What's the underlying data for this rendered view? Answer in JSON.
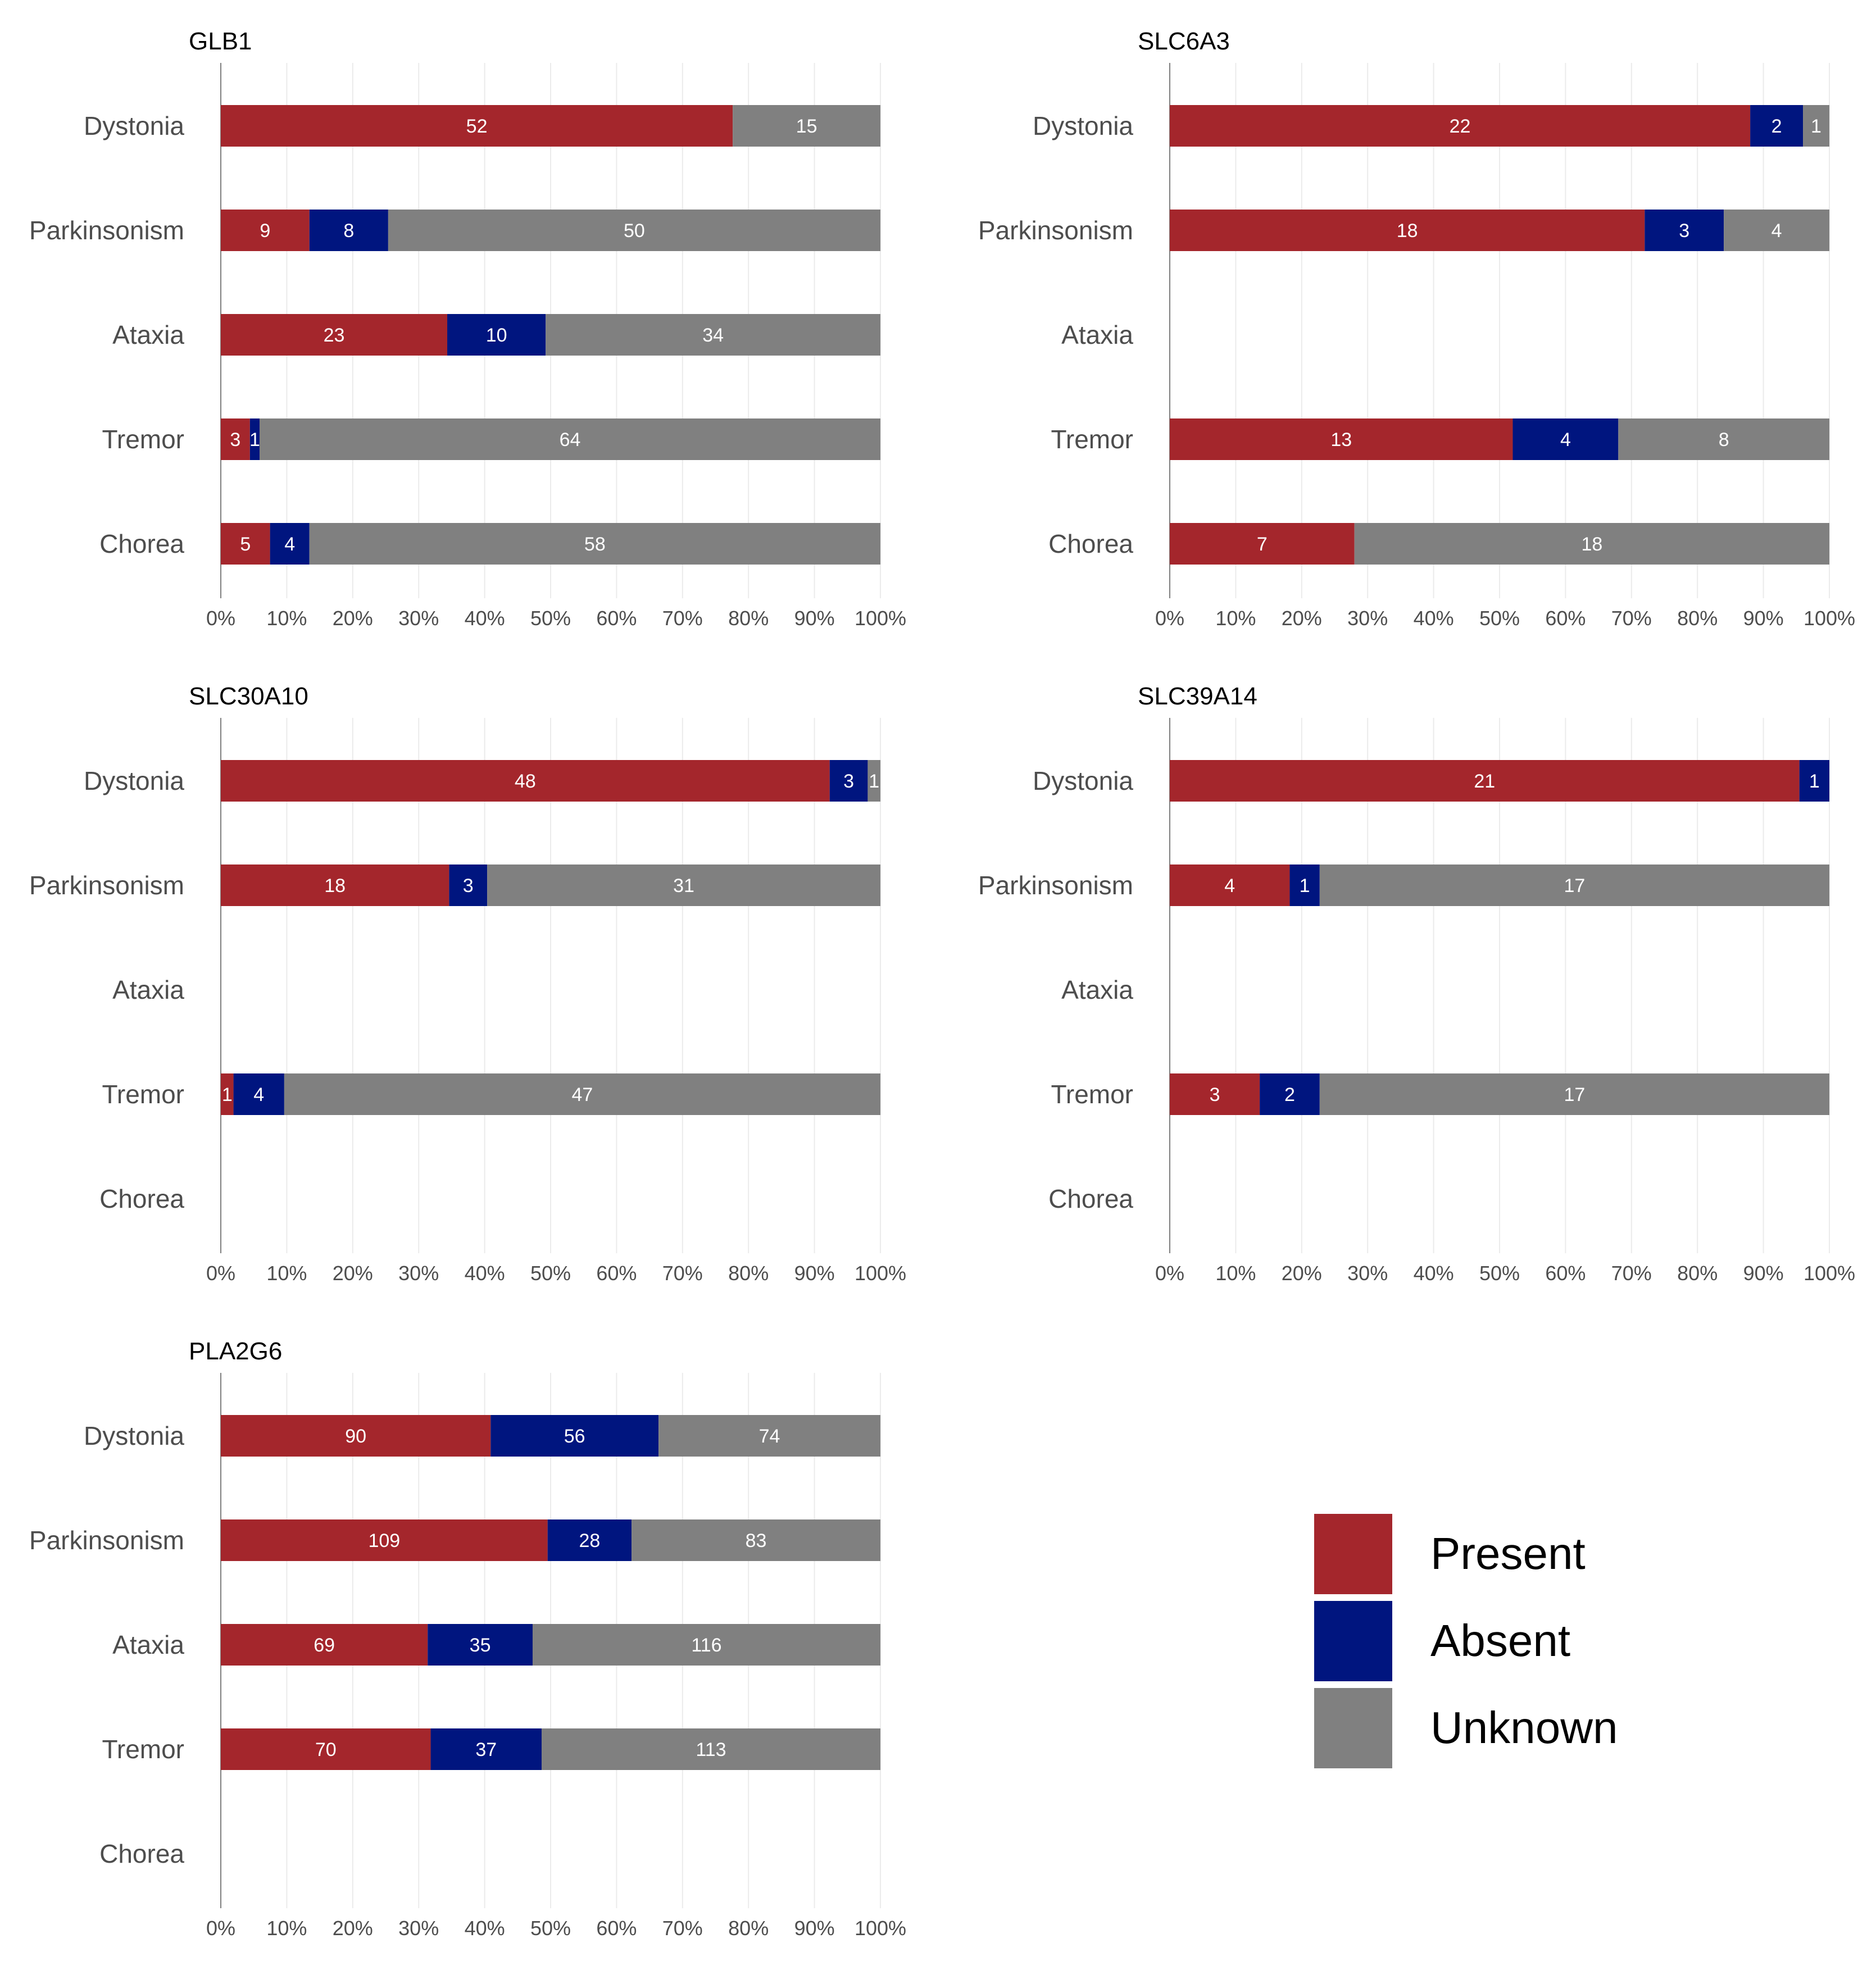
{
  "figure": {
    "legend_title": "",
    "legend": [
      {
        "key": "present",
        "label": "Present",
        "color": "#A4262C"
      },
      {
        "key": "absent",
        "label": "Absent",
        "color": "#00157F"
      },
      {
        "key": "unknown",
        "label": "Unknown",
        "color": "#808080"
      }
    ]
  },
  "chart_data": [
    {
      "type": "bar",
      "orientation": "horizontal",
      "stacking": "percent",
      "title": "GLB1",
      "categories": [
        "Dystonia",
        "Parkinsonism",
        "Ataxia",
        "Tremor",
        "Chorea"
      ],
      "series": [
        {
          "name": "Present",
          "values": [
            52,
            9,
            23,
            3,
            5
          ]
        },
        {
          "name": "Absent",
          "values": [
            0,
            8,
            10,
            1,
            4
          ]
        },
        {
          "name": "Unknown",
          "values": [
            15,
            50,
            34,
            64,
            58
          ]
        }
      ],
      "xlim": [
        0,
        100
      ],
      "xticks": [
        "0%",
        "10%",
        "20%",
        "30%",
        "40%",
        "50%",
        "60%",
        "70%",
        "80%",
        "90%",
        "100%"
      ],
      "xlabel": "",
      "ylabel": "",
      "grid": "vertical"
    },
    {
      "type": "bar",
      "orientation": "horizontal",
      "stacking": "percent",
      "title": "SLC6A3",
      "categories": [
        "Dystonia",
        "Parkinsonism",
        "Ataxia",
        "Tremor",
        "Chorea"
      ],
      "series": [
        {
          "name": "Present",
          "values": [
            22,
            18,
            0,
            13,
            7
          ]
        },
        {
          "name": "Absent",
          "values": [
            2,
            3,
            0,
            4,
            0
          ]
        },
        {
          "name": "Unknown",
          "values": [
            1,
            4,
            0,
            8,
            18
          ]
        }
      ],
      "xlim": [
        0,
        100
      ],
      "xticks": [
        "0%",
        "10%",
        "20%",
        "30%",
        "40%",
        "50%",
        "60%",
        "70%",
        "80%",
        "90%",
        "100%"
      ],
      "xlabel": "",
      "ylabel": "",
      "grid": "vertical"
    },
    {
      "type": "bar",
      "orientation": "horizontal",
      "stacking": "percent",
      "title": "SLC30A10",
      "categories": [
        "Dystonia",
        "Parkinsonism",
        "Ataxia",
        "Tremor",
        "Chorea"
      ],
      "series": [
        {
          "name": "Present",
          "values": [
            48,
            18,
            0,
            1,
            0
          ]
        },
        {
          "name": "Absent",
          "values": [
            3,
            3,
            0,
            4,
            0
          ]
        },
        {
          "name": "Unknown",
          "values": [
            1,
            31,
            0,
            47,
            0
          ]
        }
      ],
      "xlim": [
        0,
        100
      ],
      "xticks": [
        "0%",
        "10%",
        "20%",
        "30%",
        "40%",
        "50%",
        "60%",
        "70%",
        "80%",
        "90%",
        "100%"
      ],
      "xlabel": "",
      "ylabel": "",
      "grid": "vertical"
    },
    {
      "type": "bar",
      "orientation": "horizontal",
      "stacking": "percent",
      "title": "SLC39A14",
      "categories": [
        "Dystonia",
        "Parkinsonism",
        "Ataxia",
        "Tremor",
        "Chorea"
      ],
      "series": [
        {
          "name": "Present",
          "values": [
            21,
            4,
            0,
            3,
            0
          ]
        },
        {
          "name": "Absent",
          "values": [
            1,
            1,
            0,
            2,
            0
          ]
        },
        {
          "name": "Unknown",
          "values": [
            0,
            17,
            0,
            17,
            0
          ]
        }
      ],
      "xlim": [
        0,
        100
      ],
      "xticks": [
        "0%",
        "10%",
        "20%",
        "30%",
        "40%",
        "50%",
        "60%",
        "70%",
        "80%",
        "90%",
        "100%"
      ],
      "xlabel": "",
      "ylabel": "",
      "grid": "vertical"
    },
    {
      "type": "bar",
      "orientation": "horizontal",
      "stacking": "percent",
      "title": "PLA2G6",
      "categories": [
        "Dystonia",
        "Parkinsonism",
        "Ataxia",
        "Tremor",
        "Chorea"
      ],
      "series": [
        {
          "name": "Present",
          "values": [
            90,
            109,
            69,
            70,
            0
          ]
        },
        {
          "name": "Absent",
          "values": [
            56,
            28,
            35,
            37,
            0
          ]
        },
        {
          "name": "Unknown",
          "values": [
            74,
            83,
            116,
            113,
            0
          ]
        }
      ],
      "xlim": [
        0,
        100
      ],
      "xticks": [
        "0%",
        "10%",
        "20%",
        "30%",
        "40%",
        "50%",
        "60%",
        "70%",
        "80%",
        "90%",
        "100%"
      ],
      "xlabel": "",
      "ylabel": "",
      "grid": "vertical"
    }
  ]
}
